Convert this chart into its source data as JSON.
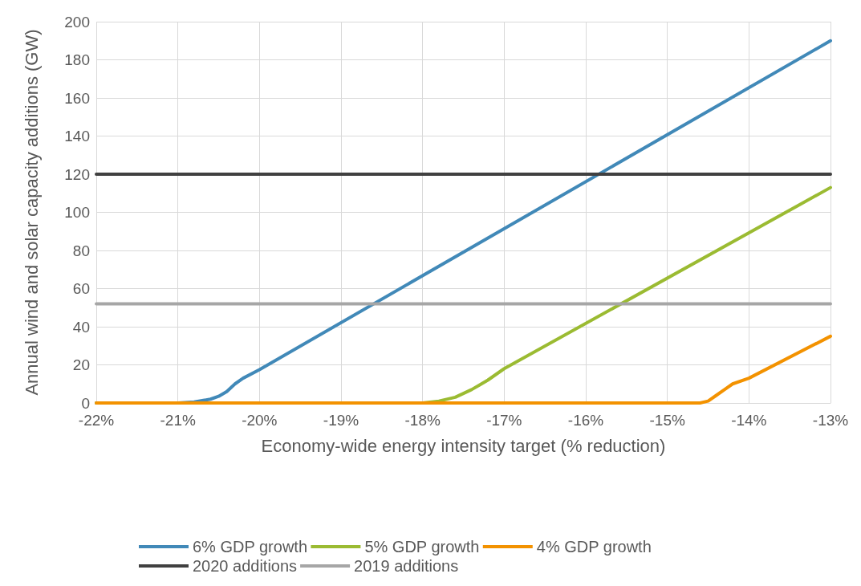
{
  "chart_data": {
    "type": "line",
    "xlabel": "Economy-wide energy intensity target (% reduction)",
    "ylabel": "Annual wind and solar capacity additions (GW)",
    "xlim": [
      -22,
      -13
    ],
    "xticks": [
      {
        "value": -22,
        "label": "-22%"
      },
      {
        "value": -21,
        "label": "-21%"
      },
      {
        "value": -20,
        "label": "-20%"
      },
      {
        "value": -19,
        "label": "-19%"
      },
      {
        "value": -18,
        "label": "-18%"
      },
      {
        "value": -17,
        "label": "-17%"
      },
      {
        "value": -16,
        "label": "-16%"
      },
      {
        "value": -15,
        "label": "-15%"
      },
      {
        "value": -14,
        "label": "-14%"
      },
      {
        "value": -13,
        "label": "-13%"
      }
    ],
    "ylim": [
      0,
      200
    ],
    "yticks": [
      0,
      20,
      40,
      60,
      80,
      100,
      120,
      140,
      160,
      180,
      200
    ],
    "grid": true,
    "legend": "bottom",
    "marker": "none",
    "line_style": "solid",
    "series": [
      {
        "name": "6% GDP growth",
        "color": "#4189b8",
        "x": [
          -22,
          -21,
          -20.8,
          -20.6,
          -20.5,
          -20.4,
          -20.3,
          -20.2,
          -20,
          -13
        ],
        "values": [
          0,
          0,
          0.5,
          2,
          3.5,
          6,
          10,
          13,
          17.5,
          190
        ]
      },
      {
        "name": "5% GDP growth",
        "color": "#9bbb32",
        "x": [
          -22,
          -18,
          -17.8,
          -17.6,
          -17.5,
          -17.4,
          -17.3,
          -17.2,
          -17,
          -13
        ],
        "values": [
          0,
          0,
          1,
          3,
          5,
          7,
          9.5,
          12,
          18,
          113
        ]
      },
      {
        "name": "4% GDP growth",
        "color": "#f39200",
        "x": [
          -22,
          -14.6,
          -14.5,
          -14.4,
          -14.3,
          -14.2,
          -14,
          -13
        ],
        "values": [
          0,
          0,
          1,
          4,
          7,
          10,
          13,
          35
        ]
      },
      {
        "name": "2020 additions",
        "color": "#404040",
        "x": [
          -22,
          -13
        ],
        "values": [
          120,
          120
        ]
      },
      {
        "name": "2019 additions",
        "color": "#a6a6a6",
        "x": [
          -22,
          -13
        ],
        "values": [
          52,
          52
        ]
      }
    ]
  }
}
